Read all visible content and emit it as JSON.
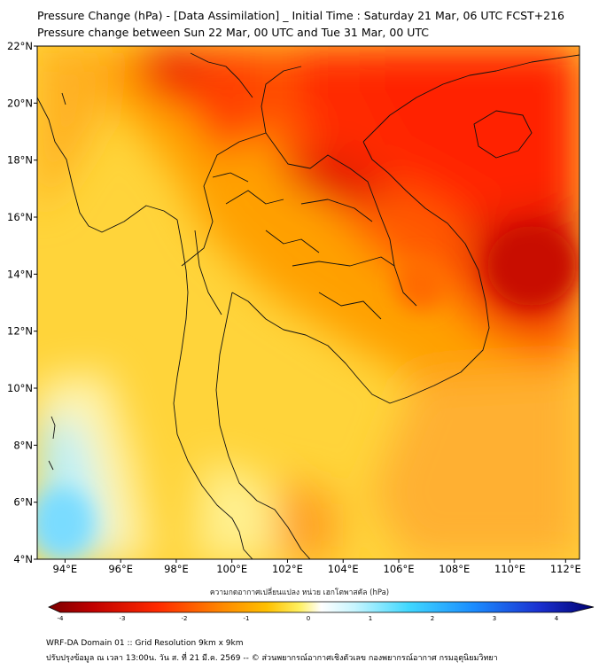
{
  "header": {
    "title": "Pressure Change (hPa) - [Data Assimilation] _ Initial Time : Saturday 21 Mar, 06 UTC FCST+216",
    "subtitle": "Pressure change between Sun 22 Mar, 00 UTC and Tue 31 Mar, 00 UTC"
  },
  "map": {
    "lat_labels": [
      "22°N",
      "20°N",
      "18°N",
      "16°N",
      "14°N",
      "12°N",
      "10°N",
      "8°N",
      "6°N",
      "4°N"
    ],
    "lon_labels": [
      "94°E",
      "96°E",
      "98°E",
      "100°E",
      "102°E",
      "104°E",
      "106°E",
      "108°E",
      "110°E",
      "112°E"
    ],
    "lat_range": [
      4,
      22
    ],
    "lon_range": [
      93.0,
      112.5
    ]
  },
  "colorbar": {
    "title": "ความกดอากาศเปลี่ยนแปลง หน่วย เฮกโตพาสคัล (hPa)",
    "ticks": [
      "-4",
      "-3",
      "-2",
      "-1",
      "0",
      "1",
      "2",
      "3",
      "4"
    ],
    "colors": {
      "min": "#7a0000",
      "mid_red": "#ff2a00",
      "mid_orange": "#ffa000",
      "mid_yellow": "#ffe23a",
      "zero": "#ffffff",
      "mid_cyan": "#40d8ff",
      "mid_blue": "#1a50ff",
      "max": "#000070"
    }
  },
  "footer": {
    "line1": "WRF-DA Domain 01 :: Grid Resolution 9km x 9km",
    "line2": "ปรับปรุงข้อมูล ณ เวลา 13:00น. วัน ส. ที่ 21 มี.ค. 2569 -- © ส่วนพยากรณ์อากาศเชิงตัวเลข กองพยากรณ์อากาศ กรมอุตุนิยมวิทยา"
  }
}
